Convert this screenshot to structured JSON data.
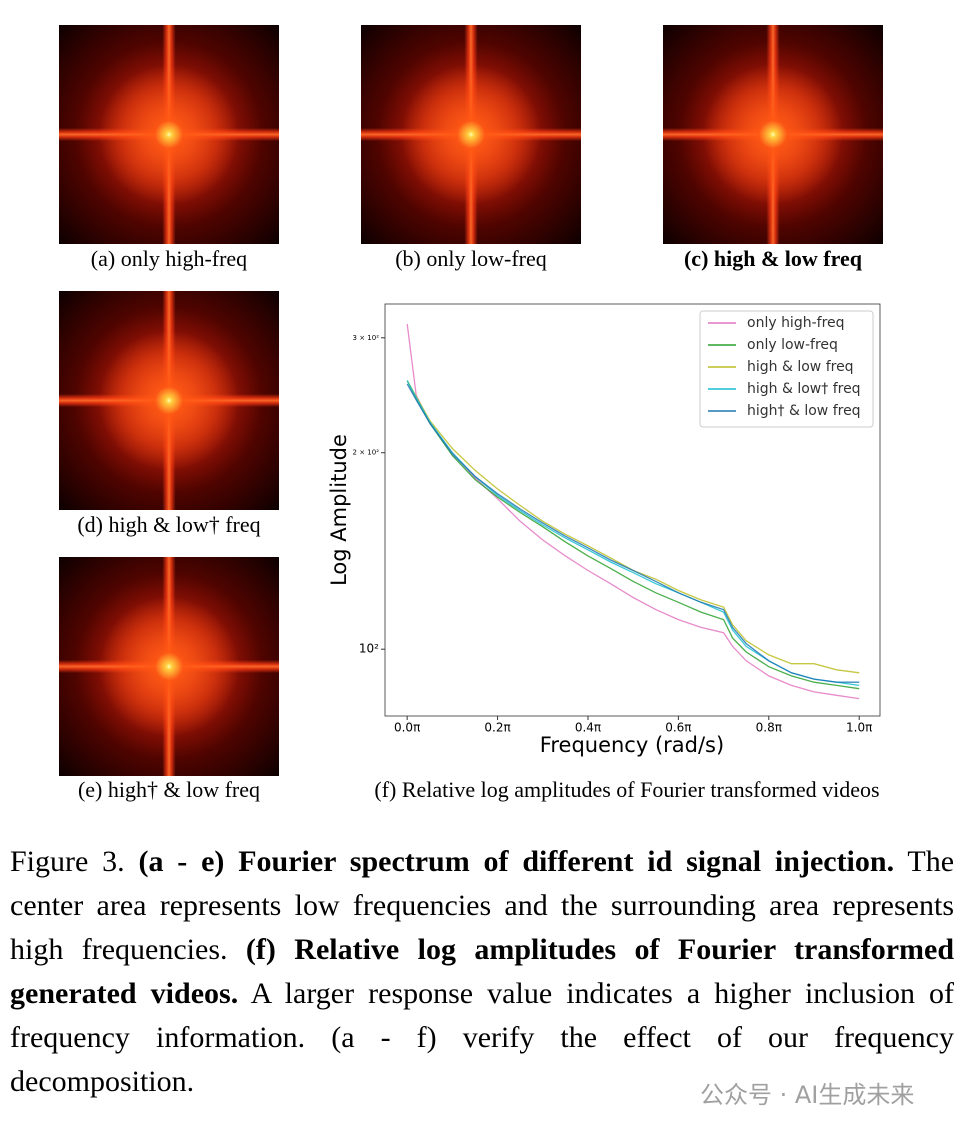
{
  "panels": [
    {
      "label": "(a) only high-freq"
    },
    {
      "label": "(b) only low-freq"
    },
    {
      "label": "(c) high & low freq"
    },
    {
      "label": "(d) high & low† freq"
    },
    {
      "label": "(e) high† & low freq"
    }
  ],
  "chart_data": {
    "type": "line",
    "caption": "(f) Relative log amplitudes of Fourier transformed videos",
    "xlabel": "Frequency (rad/s)",
    "ylabel": "Log Amplitude",
    "yscale": "log",
    "legend": "upper right",
    "xlim": [
      -0.049,
      1.046
    ],
    "xticks": [
      {
        "value": 0,
        "label": "0.0π"
      },
      {
        "value": 0.2,
        "label": "0.2π"
      },
      {
        "value": 0.4,
        "label": "0.4π"
      },
      {
        "value": 0.6,
        "label": "0.6π"
      },
      {
        "value": 0.8,
        "label": "0.8π"
      },
      {
        "value": 1.0,
        "label": "1.0π"
      }
    ],
    "ylim": [
      79,
      338
    ],
    "yticks": [
      {
        "value": 100,
        "label": "10²"
      },
      {
        "value": 200,
        "label": "2 × 10²"
      },
      {
        "value": 300,
        "label": "3 × 10²"
      }
    ],
    "x": [
      0,
      0.02,
      0.05,
      0.1,
      0.15,
      0.2,
      0.25,
      0.3,
      0.35,
      0.4,
      0.45,
      0.5,
      0.55,
      0.6,
      0.65,
      0.7,
      0.72,
      0.75,
      0.8,
      0.85,
      0.9,
      0.95,
      1.0
    ],
    "series": [
      {
        "name": "only high-freq",
        "color": "#e377c2",
        "values": [
          315,
          245,
          222,
          200,
          183,
          170,
          157,
          147,
          139,
          132,
          126,
          120,
          115,
          111,
          108,
          106,
          101,
          96,
          91,
          88,
          86,
          85,
          84
        ]
      },
      {
        "name": "only low-freq",
        "color": "#2ca02c",
        "values": [
          258,
          242,
          222,
          198,
          182,
          171,
          162,
          154,
          146,
          139,
          133,
          127,
          122,
          118,
          114,
          111,
          104,
          99,
          94,
          91,
          89,
          88,
          87
        ]
      },
      {
        "name": "high & low freq",
        "color": "#bcbd22",
        "values": [
          258,
          244,
          224,
          203,
          188,
          176,
          166,
          157,
          150,
          144,
          138,
          132,
          128,
          123,
          119,
          116,
          109,
          103,
          98,
          95,
          95,
          93,
          92
        ]
      },
      {
        "name": "high & low† freq",
        "color": "#17becf",
        "values": [
          258,
          243,
          223,
          200,
          184,
          172,
          163,
          155,
          148,
          142,
          136,
          131,
          126,
          122,
          118,
          114,
          107,
          101,
          96,
          92,
          90,
          89,
          88
        ]
      },
      {
        "name": "high† & low freq",
        "color": "#1f77b4",
        "values": [
          255,
          241,
          222,
          199,
          184,
          173,
          164,
          156,
          149,
          143,
          137,
          132,
          127,
          122,
          118,
          115,
          108,
          102,
          96,
          92,
          90,
          89,
          89
        ]
      }
    ]
  },
  "caption": [
    {
      "text": "Figure 3. ",
      "bold": false
    },
    {
      "text": "(a - e) Fourier spectrum of different id signal injection.",
      "bold": true
    },
    {
      "text": " The center area represents low frequencies and the surrounding area represents high frequencies. ",
      "bold": false
    },
    {
      "text": "(f) Relative log amplitudes of Fourier transformed generated videos.",
      "bold": true
    },
    {
      "text": " A larger response value indicates a higher inclusion of frequency information. (a - f) verify the effect of our frequency decomposition.",
      "bold": false
    }
  ],
  "watermark": "公众号 · AI生成未来"
}
